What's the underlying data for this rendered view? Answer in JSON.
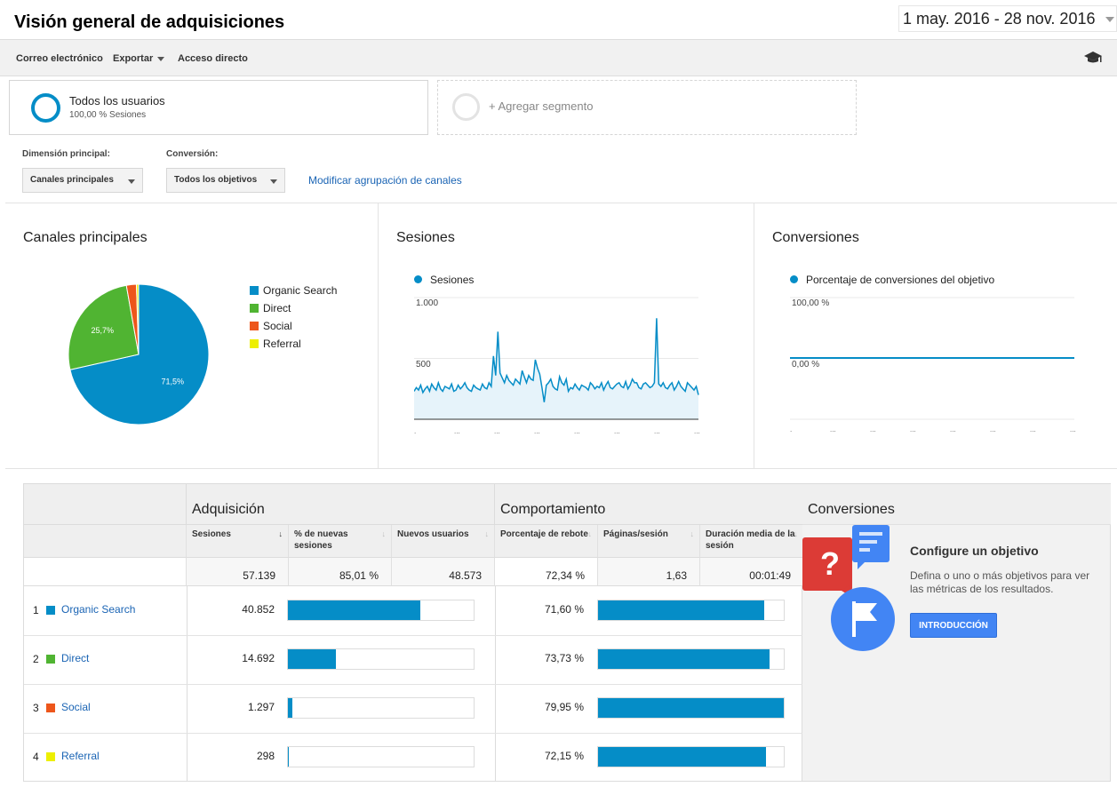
{
  "header": {
    "title": "Visión general de adquisiciones",
    "date_range": "1 may. 2016 - 28 nov. 2016"
  },
  "toolbar": {
    "email": "Correo electrónico",
    "export": "Exportar",
    "shortcut": "Acceso directo"
  },
  "segments": {
    "active_name": "Todos los usuarios",
    "active_sub": "100,00 % Sesiones",
    "add_label": "+ Agregar segmento"
  },
  "controls": {
    "primary_dimension_label": "Dimensión principal:",
    "primary_dimension_value": "Canales principales",
    "conversion_label": "Conversión:",
    "conversion_value": "Todos los objetivos",
    "modify_link": "Modificar agrupación de canales"
  },
  "colors": {
    "organic": "#058dc7",
    "direct": "#50b432",
    "social": "#ed561b",
    "referral": "#edef00",
    "accent": "#058dc7",
    "link": "#1a64b4"
  },
  "panels": {
    "channels_title": "Canales principales",
    "sessions_title": "Sesiones",
    "conversions_title": "Conversiones"
  },
  "chart_data": [
    {
      "type": "pie",
      "title": "Canales principales",
      "series": [
        {
          "name": "Organic Search",
          "value": 71.5,
          "label": "71,5%",
          "color": "#058dc7"
        },
        {
          "name": "Direct",
          "value": 25.7,
          "label": "25,7%",
          "color": "#50b432"
        },
        {
          "name": "Social",
          "value": 2.3,
          "label": "",
          "color": "#ed561b"
        },
        {
          "name": "Referral",
          "value": 0.5,
          "label": "",
          "color": "#edef00"
        }
      ]
    },
    {
      "type": "area",
      "title": "Sesiones",
      "legend": "Sesiones",
      "y_ticks": [
        "1.000",
        "500"
      ],
      "ylim": [
        0,
        1000
      ],
      "values": [
        230,
        260,
        240,
        280,
        220,
        250,
        270,
        230,
        290,
        260,
        240,
        300,
        250,
        230,
        270,
        260,
        250,
        290,
        230,
        240,
        280,
        250,
        270,
        300,
        260,
        240,
        230,
        280,
        260,
        250,
        240,
        290,
        260,
        250,
        300,
        270,
        520,
        360,
        720,
        380,
        340,
        300,
        360,
        320,
        300,
        280,
        330,
        310,
        290,
        400,
        350,
        300,
        360,
        330,
        320,
        490,
        420,
        370,
        260,
        140,
        280,
        300,
        330,
        270,
        250,
        240,
        350,
        300,
        280,
        330,
        230,
        260,
        250,
        290,
        260,
        240,
        280,
        270,
        260,
        240,
        300,
        280,
        250,
        270,
        260,
        300,
        240,
        280,
        310,
        260,
        250,
        270,
        290,
        300,
        270,
        260,
        310,
        250,
        280,
        330,
        300,
        300,
        260,
        250,
        290,
        300,
        280,
        260,
        270,
        300,
        830,
        290,
        270,
        300,
        260,
        250,
        280,
        300,
        240,
        270,
        310,
        270,
        250,
        230,
        300,
        280,
        260,
        240,
        270,
        200
      ],
      "x_ticks": 8
    },
    {
      "type": "line",
      "title": "Conversiones",
      "legend": "Porcentaje de conversiones del objetivo",
      "y_ticks": [
        "100,00 %",
        "0,00 %"
      ],
      "ylim": [
        0,
        100
      ],
      "values": [
        0,
        0
      ],
      "x_ticks": 8
    }
  ],
  "table": {
    "groups": {
      "acquisition": "Adquisición",
      "behavior": "Comportamiento",
      "conversions": "Conversiones"
    },
    "columns": {
      "sessions": "Sesiones",
      "new_sessions_pct": "% de nuevas sesiones",
      "new_users": "Nuevos usuarios",
      "bounce_rate": "Porcentaje de rebote",
      "pages_session": "Páginas/sesión",
      "avg_duration": "Duración media de la sesión"
    },
    "totals": {
      "sessions": "57.139",
      "new_sessions_pct": "85,01 %",
      "new_users": "48.573",
      "bounce_rate": "72,34 %",
      "pages_session": "1,63",
      "avg_duration": "00:01:49"
    },
    "rows": [
      {
        "num": "1",
        "name": "Organic Search",
        "color": "#058dc7",
        "sessions": "40.852",
        "sessions_share": 0.715,
        "bounce": "71,60 %",
        "bounce_share": 0.8956
      },
      {
        "num": "2",
        "name": "Direct",
        "color": "#50b432",
        "sessions": "14.692",
        "sessions_share": 0.257,
        "bounce": "73,73 %",
        "bounce_share": 0.9222
      },
      {
        "num": "3",
        "name": "Social",
        "color": "#ed561b",
        "sessions": "1.297",
        "sessions_share": 0.023,
        "bounce": "79,95 %",
        "bounce_share": 1.0
      },
      {
        "num": "4",
        "name": "Referral",
        "color": "#edef00",
        "sessions": "298",
        "sessions_share": 0.005,
        "bounce": "72,15 %",
        "bounce_share": 0.9025
      }
    ]
  },
  "promo": {
    "title": "Configure un objetivo",
    "description": "Defina o uno o más objetivos para ver las métricas de los resultados.",
    "button": "INTRODUCCIÓN"
  }
}
